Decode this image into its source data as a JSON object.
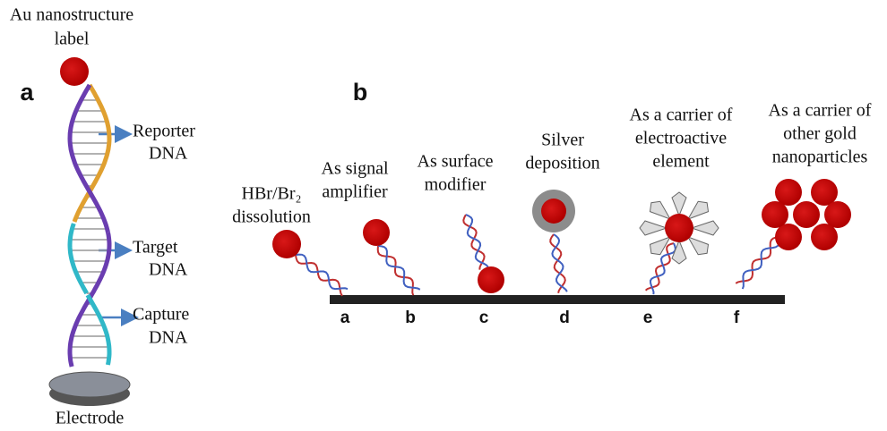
{
  "panel_a": {
    "label": "a",
    "top_label": [
      "Au nanostructure",
      "label"
    ],
    "annotations": [
      {
        "lines": [
          "Reporter",
          "DNA"
        ]
      },
      {
        "lines": [
          "Target",
          "DNA"
        ]
      },
      {
        "lines": [
          "Capture",
          "DNA"
        ]
      }
    ],
    "electrode": "Electrode"
  },
  "panel_b": {
    "label": "b",
    "items": [
      {
        "caption": [
          "HBr/Br₂",
          "dissolution"
        ],
        "letter": "a"
      },
      {
        "caption": [
          "As signal",
          "amplifier"
        ],
        "letter": "b"
      },
      {
        "caption": [
          "As surface",
          "modifier"
        ],
        "letter": "c"
      },
      {
        "caption": [
          "Silver",
          "deposition"
        ],
        "letter": "d"
      },
      {
        "caption": [
          "As a carrier of",
          "electroactive",
          "element"
        ],
        "letter": "e"
      },
      {
        "caption": [
          "As a carrier of",
          "other  gold",
          "nanoparticles"
        ],
        "letter": "f"
      }
    ]
  }
}
